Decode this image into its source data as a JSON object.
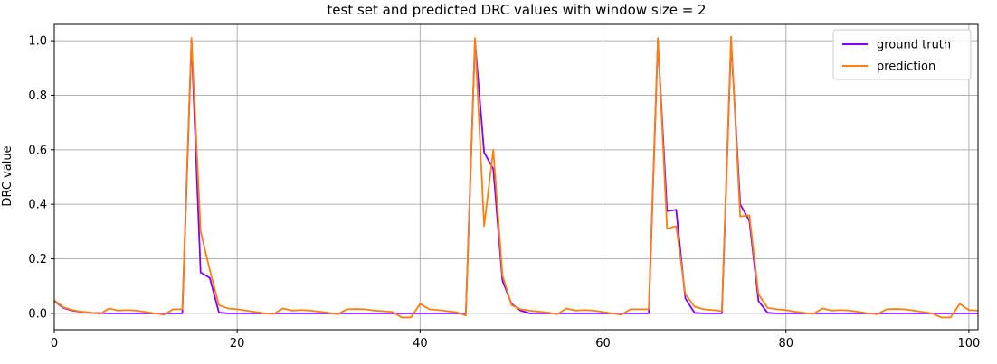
{
  "chart_data": {
    "type": "line",
    "title": "test set and predicted DRC values with window size = 2",
    "xlabel": "",
    "ylabel": "DRC value",
    "xlim": [
      0,
      101
    ],
    "ylim": [
      -0.06,
      1.06
    ],
    "xticks": [
      0,
      20,
      40,
      60,
      80,
      100
    ],
    "yticks": [
      0.0,
      0.2,
      0.4,
      0.6,
      0.8,
      1.0
    ],
    "xtick_labels": [
      "0",
      "20",
      "40",
      "60",
      "80",
      "100"
    ],
    "ytick_labels": [
      "0.0",
      "0.2",
      "0.4",
      "0.6",
      "0.8",
      "1.0"
    ],
    "grid": true,
    "legend_position": "top-right",
    "series": [
      {
        "name": "ground truth",
        "color": "#7f00ff",
        "x": [
          0,
          1,
          2,
          3,
          4,
          5,
          6,
          7,
          8,
          9,
          10,
          11,
          12,
          13,
          14,
          15,
          16,
          17,
          18,
          19,
          20,
          21,
          22,
          23,
          24,
          25,
          26,
          27,
          28,
          29,
          30,
          31,
          32,
          33,
          34,
          35,
          36,
          37,
          38,
          39,
          40,
          41,
          42,
          43,
          44,
          45,
          46,
          47,
          48,
          49,
          50,
          51,
          52,
          53,
          54,
          55,
          56,
          57,
          58,
          59,
          60,
          61,
          62,
          63,
          64,
          65,
          66,
          67,
          68,
          69,
          70,
          71,
          72,
          73,
          74,
          75,
          76,
          77,
          78,
          79,
          80,
          81,
          82,
          83,
          84,
          85,
          86,
          87,
          88,
          89,
          90,
          91,
          92,
          93,
          94,
          95,
          96,
          97,
          98,
          99,
          100,
          101
        ],
        "values": [
          0.045,
          0.02,
          0.01,
          0.005,
          0.002,
          0.001,
          0,
          0,
          0,
          0,
          0,
          0,
          0,
          0,
          0,
          1.0,
          0.15,
          0.13,
          0.003,
          0,
          0,
          0,
          0,
          0,
          0,
          0,
          0,
          0,
          0,
          0,
          0,
          0,
          0,
          0,
          0,
          0,
          0,
          0,
          0,
          0,
          0,
          0,
          0,
          0,
          0,
          0,
          1.0,
          0.59,
          0.53,
          0.12,
          0.035,
          0.01,
          0,
          0,
          0,
          0,
          0,
          0,
          0,
          0,
          0,
          0,
          0,
          0,
          0,
          0,
          1.0,
          0.375,
          0.38,
          0.055,
          0.002,
          0,
          0,
          0,
          1.0,
          0.4,
          0.34,
          0.045,
          0.002,
          0,
          0,
          0,
          0,
          0,
          0,
          0,
          0,
          0,
          0,
          0,
          0,
          0,
          0,
          0,
          0,
          0,
          0,
          0,
          0,
          0,
          0,
          0
        ]
      },
      {
        "name": "prediction",
        "color": "#ff7f0e",
        "x": [
          0,
          1,
          2,
          3,
          4,
          5,
          6,
          7,
          8,
          9,
          10,
          11,
          12,
          13,
          14,
          15,
          16,
          17,
          18,
          19,
          20,
          21,
          22,
          23,
          24,
          25,
          26,
          27,
          28,
          29,
          30,
          31,
          32,
          33,
          34,
          35,
          36,
          37,
          38,
          39,
          40,
          41,
          42,
          43,
          44,
          45,
          46,
          47,
          48,
          49,
          50,
          51,
          52,
          53,
          54,
          55,
          56,
          57,
          58,
          59,
          60,
          61,
          62,
          63,
          64,
          65,
          66,
          67,
          68,
          69,
          70,
          71,
          72,
          73,
          74,
          75,
          76,
          77,
          78,
          79,
          80,
          81,
          82,
          83,
          84,
          85,
          86,
          87,
          88,
          89,
          90,
          91,
          92,
          93,
          94,
          95,
          96,
          97,
          98,
          99,
          100,
          101
        ],
        "values": [
          0.048,
          0.022,
          0.012,
          0.006,
          0.003,
          -0.002,
          0.018,
          0.01,
          0.012,
          0.01,
          0.005,
          0,
          -0.005,
          0.015,
          0.015,
          1.01,
          0.3,
          0.16,
          0.03,
          0.018,
          0.015,
          0.01,
          0.005,
          0,
          -0.002,
          0.018,
          0.01,
          0.012,
          0.01,
          0.006,
          0.002,
          -0.003,
          0.015,
          0.016,
          0.015,
          0.01,
          0.008,
          0.005,
          -0.015,
          -0.015,
          0.035,
          0.015,
          0.012,
          0.008,
          0.004,
          -0.008,
          1.01,
          0.32,
          0.6,
          0.14,
          0.03,
          0.015,
          0.01,
          0.006,
          0.003,
          -0.003,
          0.018,
          0.01,
          0.012,
          0.01,
          0.005,
          0,
          -0.005,
          0.015,
          0.015,
          0.015,
          1.01,
          0.31,
          0.32,
          0.07,
          0.025,
          0.015,
          0.012,
          0.008,
          1.015,
          0.355,
          0.36,
          0.07,
          0.02,
          0.015,
          0.012,
          0.006,
          0.002,
          -0.002,
          0.018,
          0.01,
          0.012,
          0.01,
          0.005,
          0,
          -0.003,
          0.015,
          0.016,
          0.015,
          0.01,
          0.005,
          0,
          -0.015,
          -0.015,
          0.035,
          0.012,
          0.01
        ]
      }
    ]
  }
}
